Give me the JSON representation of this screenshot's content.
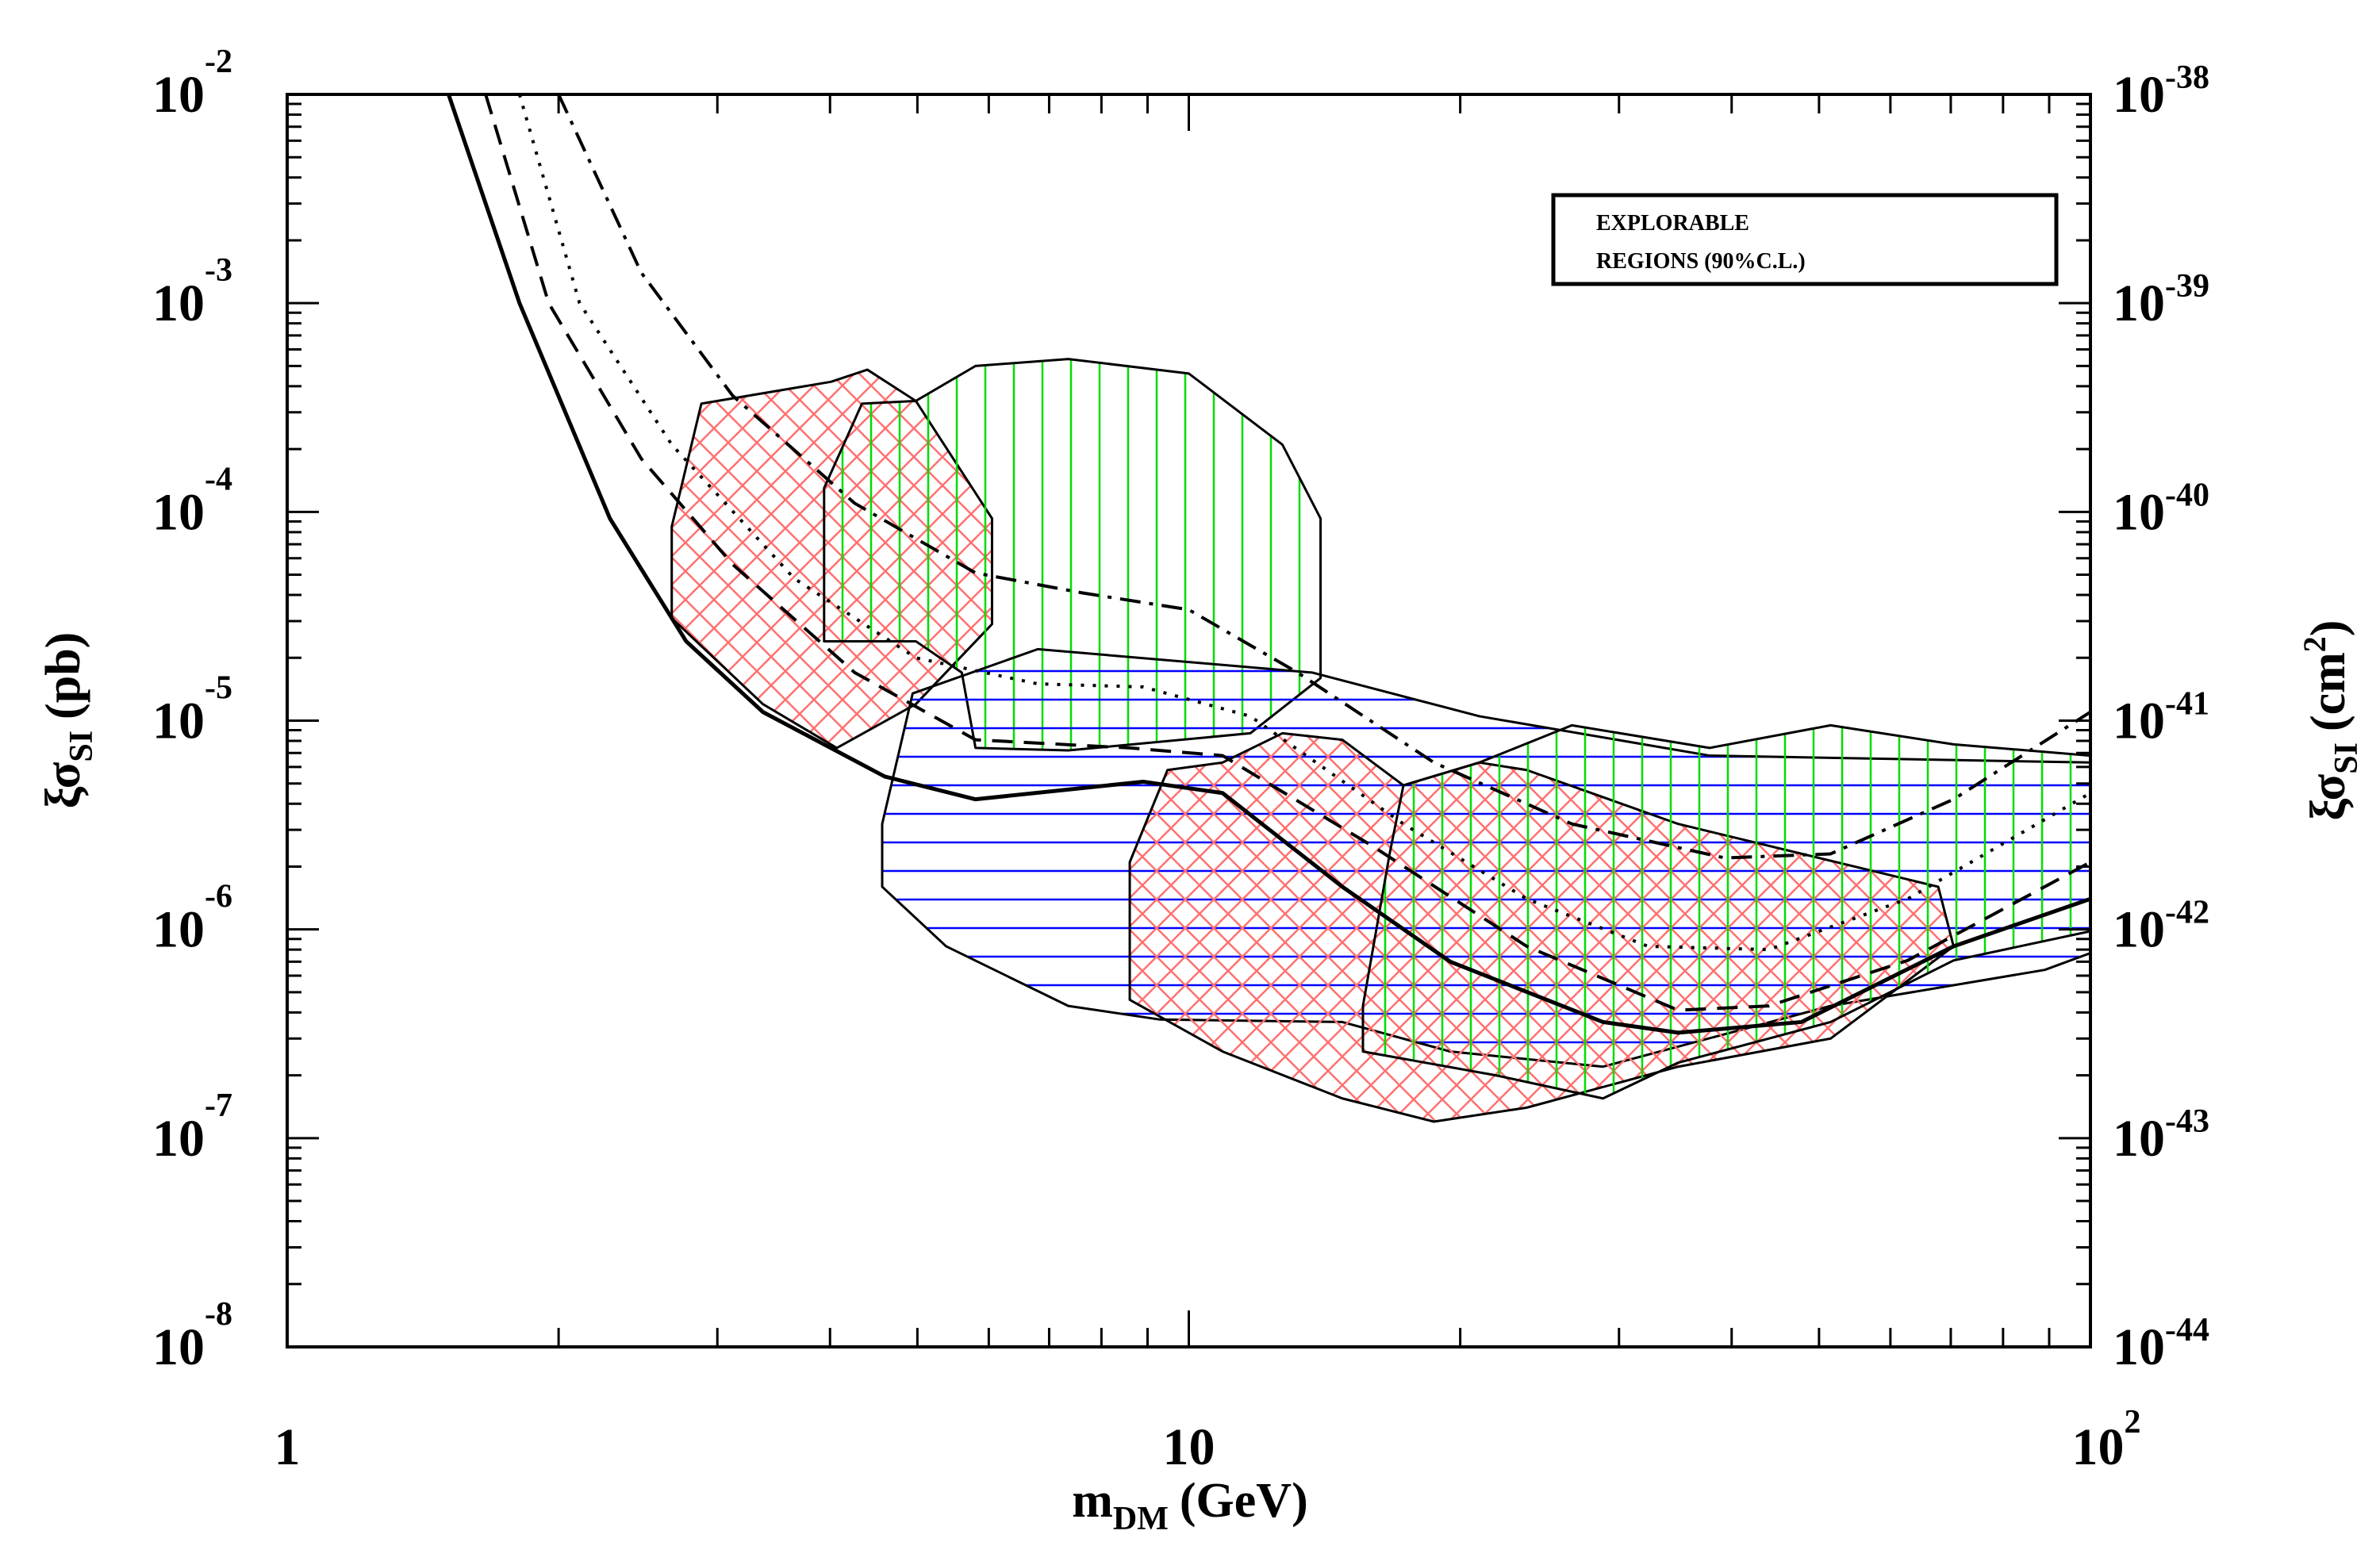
{
  "chart_data": {
    "type": "line",
    "xscale": "log",
    "yscale": "log",
    "xlim": [
      1,
      100
    ],
    "ylim": [
      1e-08,
      0.01
    ],
    "y2lim": [
      1e-44,
      1e-38
    ],
    "xticks": [
      1,
      10,
      {
        "value": 100,
        "label": "10",
        "sup": "2"
      }
    ],
    "yticks": [
      {
        "value": 1e-08,
        "label": "10",
        "sup": "-8"
      },
      {
        "value": 1e-07,
        "label": "10",
        "sup": "-7"
      },
      {
        "value": 1e-06,
        "label": "10",
        "sup": "-6"
      },
      {
        "value": 1e-05,
        "label": "10",
        "sup": "-5"
      },
      {
        "value": 0.0001,
        "label": "10",
        "sup": "-4"
      },
      {
        "value": 0.001,
        "label": "10",
        "sup": "-3"
      },
      {
        "value": 0.01,
        "label": "10",
        "sup": "-2"
      }
    ],
    "y2ticks": [
      {
        "value": 1e-44,
        "label": "10",
        "sup": "-44"
      },
      {
        "value": 1e-43,
        "label": "10",
        "sup": "-43"
      },
      {
        "value": 1e-42,
        "label": "10",
        "sup": "-42"
      },
      {
        "value": 1e-41,
        "label": "10",
        "sup": "-41"
      },
      {
        "value": 1e-40,
        "label": "10",
        "sup": "-40"
      },
      {
        "value": 1e-39,
        "label": "10",
        "sup": "-39"
      },
      {
        "value": 1e-38,
        "label": "10",
        "sup": "-38"
      }
    ],
    "xlabel": {
      "main": "m",
      "sub": "DM",
      "unit": "(GeV)"
    },
    "ylabel": {
      "main": "ξσ",
      "sub": "SI",
      "unit": "(pb)"
    },
    "y2label": {
      "main": "ξσ",
      "sub": "SI",
      "unit": "(cm",
      "sup": "2",
      "close": ")"
    },
    "annotation": {
      "lines": [
        "EXPLORABLE",
        "REGIONS (90%C.L.)"
      ]
    },
    "regions": [
      {
        "hatch": "cross",
        "color": "#ff7070",
        "x": [
          2.88,
          4.01,
          4.4,
          4.98,
          6.05,
          6.05,
          4.98,
          4.07,
          3.37,
          2.67,
          2.67
        ],
        "y": [
          0.00033,
          0.00042,
          0.00048,
          0.00034,
          9.3e-05,
          2.9e-05,
          1.2e-05,
          7.4e-06,
          1.2e-05,
          3.1e-05,
          8.5e-05
        ]
      },
      {
        "hatch": "vertical",
        "color": "#00dd00",
        "x": [
          3.94,
          4.34,
          4.98,
          5.8,
          7.35,
          10,
          12.7,
          14.0,
          14.0,
          11.7,
          7.35,
          5.8,
          5.6,
          4.98,
          3.94
        ],
        "y": [
          0.00013,
          0.00033,
          0.00034,
          0.0005,
          0.00054,
          0.00046,
          0.00021,
          9.3e-05,
          1.6e-05,
          8.7e-06,
          7.2e-06,
          7.4e-06,
          1.7e-05,
          2.4e-05,
          2.4e-05
        ]
      },
      {
        "hatch": "horizontal",
        "color": "#0000ff",
        "x": [
          4.57,
          4.94,
          6.8,
          13.7,
          21.0,
          37.8,
          100,
          100,
          89,
          51.5,
          28.8,
          19.5,
          14.8,
          9.29,
          7.35,
          5.38,
          4.57
        ],
        "y": [
          3.2e-06,
          1.35e-05,
          2.2e-05,
          1.7e-05,
          1.05e-05,
          6.8e-06,
          6.3e-06,
          7.7e-07,
          6.4e-07,
          4.3e-07,
          2.2e-07,
          2.6e-07,
          3.6e-07,
          3.7e-07,
          4.3e-07,
          8.3e-07,
          1.6e-06
        ]
      },
      {
        "hatch": "cross",
        "color": "#ff7070",
        "x": [
          8.6,
          9.47,
          10.9,
          12.7,
          14.8,
          17.3,
          21.0,
          23.7,
          34.9,
          67.8,
          70.5,
          51.5,
          34.9,
          23.7,
          18.7,
          14.8,
          10.9,
          8.6
        ],
        "y": [
          2.1e-06,
          5.8e-06,
          6.3e-06,
          8.7e-06,
          8.1e-06,
          4.9e-06,
          6.3e-06,
          5.8e-06,
          3.2e-06,
          1.6e-06,
          8.3e-07,
          3e-07,
          2.2e-07,
          1.4e-07,
          1.2e-07,
          1.55e-07,
          2.6e-07,
          4.6e-07
        ]
      },
      {
        "hatch": "vertical",
        "color": "#00dd00",
        "x": [
          15.6,
          16.7,
          17.3,
          21.0,
          26.6,
          37.8,
          51.5,
          70.5,
          100,
          100,
          70.5,
          51.5,
          34.9,
          28.8,
          21.9,
          15.6
        ],
        "y": [
          4.3e-07,
          2.3e-06,
          4.9e-06,
          6.3e-06,
          9.5e-06,
          7.4e-06,
          9.5e-06,
          7.7e-06,
          6.8e-06,
          9.8e-07,
          7.1e-07,
          3.6e-07,
          2.3e-07,
          1.55e-07,
          2e-07,
          2.6e-07
        ]
      }
    ],
    "series": [
      {
        "style": "solid",
        "color": "#000000",
        "x": [
          1.51,
          1.81,
          2.28,
          2.77,
          3.37,
          4.6,
          5.8,
          8.9,
          10.9,
          14.8,
          19.5,
          28.8,
          34.9,
          47.8,
          70.5,
          100
        ],
        "values": [
          0.01,
          0.001,
          9.3e-05,
          2.4e-05,
          1.1e-05,
          5.4e-06,
          4.2e-06,
          5.1e-06,
          4.5e-06,
          1.6e-06,
          7e-07,
          3.6e-07,
          3.2e-07,
          3.6e-07,
          8.3e-07,
          1.4e-06
        ]
      },
      {
        "style": "dashed",
        "color": "#000000",
        "x": [
          1.66,
          1.95,
          2.47,
          3.12,
          4.26,
          5.8,
          8.6,
          10.9,
          16,
          23.7,
          34.9,
          44,
          62.7,
          100
        ],
        "values": [
          0.01,
          0.001,
          0.00018,
          5.6e-05,
          1.7e-05,
          8.1e-06,
          7.4e-06,
          6.8e-06,
          2.5e-06,
          8.3e-07,
          4.1e-07,
          4.3e-07,
          7.1e-07,
          2.1e-06
        ]
      },
      {
        "style": "dotted",
        "color": "#000000",
        "x": [
          1.81,
          2.11,
          2.67,
          3.65,
          4.98,
          6.8,
          8.9,
          11.7,
          17.3,
          23.7,
          32.3,
          44,
          62.7,
          100
        ],
        "values": [
          0.01,
          0.001,
          0.00021,
          4.8e-05,
          2e-05,
          1.5e-05,
          1.45e-05,
          1.05e-05,
          3.2e-06,
          1.4e-06,
          8.3e-07,
          8e-07,
          1.4e-06,
          4.5e-06
        ]
      },
      {
        "style": "dashdot",
        "color": "#000000",
        "x": [
          2.0,
          2.47,
          3.12,
          4.26,
          5.8,
          7.6,
          10,
          13.2,
          18.7,
          26.6,
          39.3,
          51.5,
          70.5,
          100
        ],
        "values": [
          0.01,
          0.0014,
          0.00036,
          0.00011,
          5.1e-05,
          4.1e-05,
          3.4e-05,
          1.7e-05,
          6.3e-06,
          3.2e-06,
          2.2e-06,
          2.3e-06,
          4.2e-06,
          1.1e-05
        ]
      }
    ]
  }
}
